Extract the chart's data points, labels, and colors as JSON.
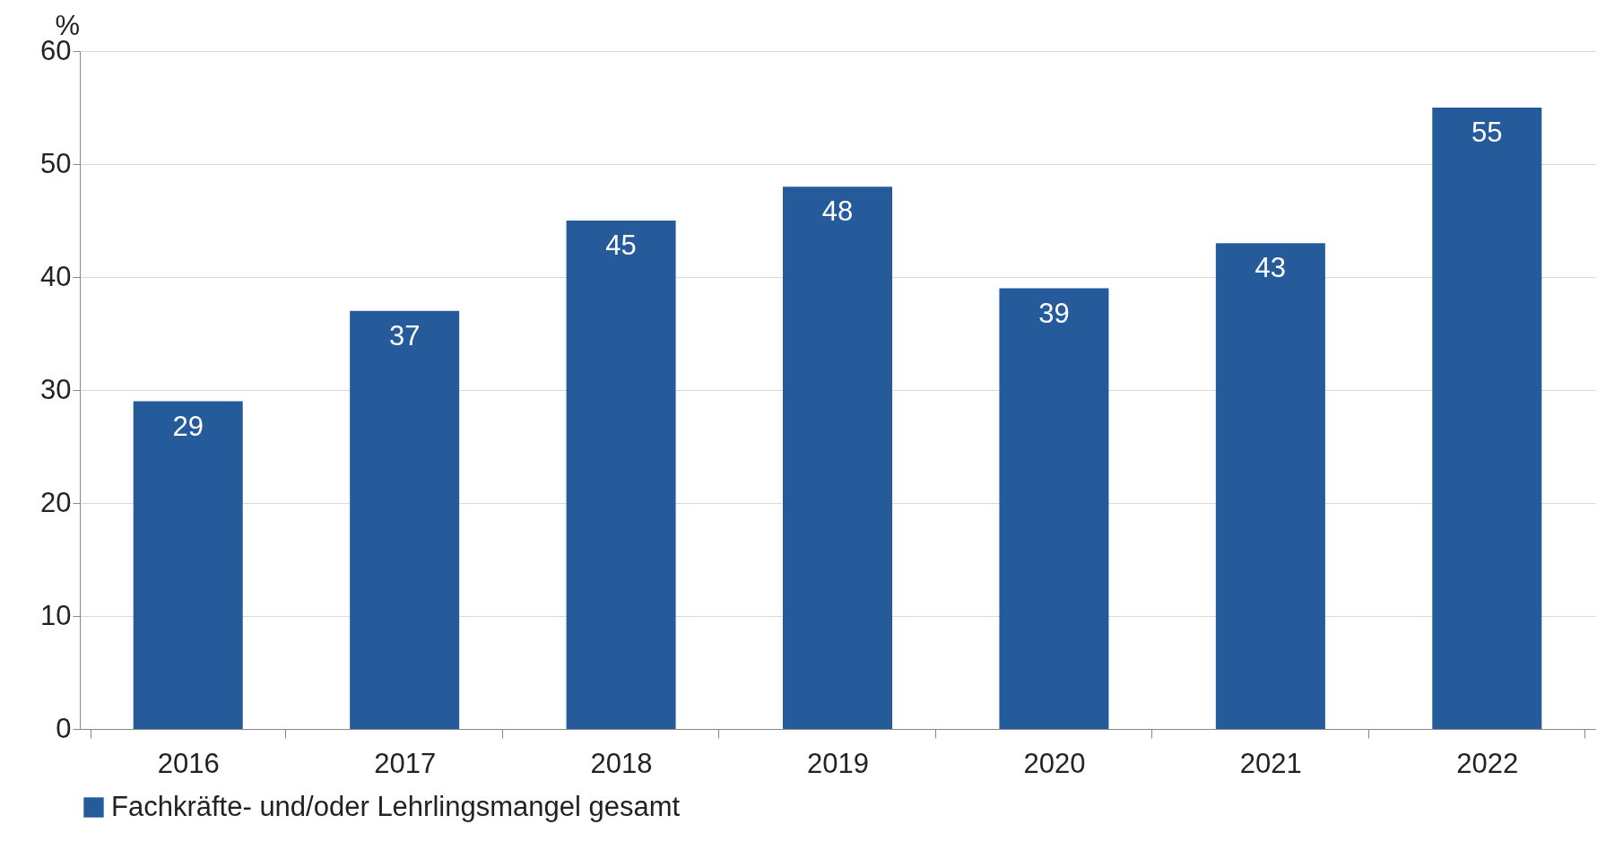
{
  "chart_data": {
    "type": "bar",
    "ylabel": "%",
    "categories": [
      "2016",
      "2017",
      "2018",
      "2019",
      "2020",
      "2021",
      "2022"
    ],
    "series": [
      {
        "name": "Fachkräfte- und/oder Lehrlingsmangel gesamt",
        "color": "#265b9b",
        "values": [
          29,
          37,
          45,
          48,
          39,
          43,
          55
        ]
      }
    ],
    "ylim": [
      0,
      60
    ],
    "yticks": [
      0,
      10,
      20,
      30,
      40,
      50,
      60
    ],
    "grid": "y",
    "legend": "bottom",
    "data_labels": true
  }
}
